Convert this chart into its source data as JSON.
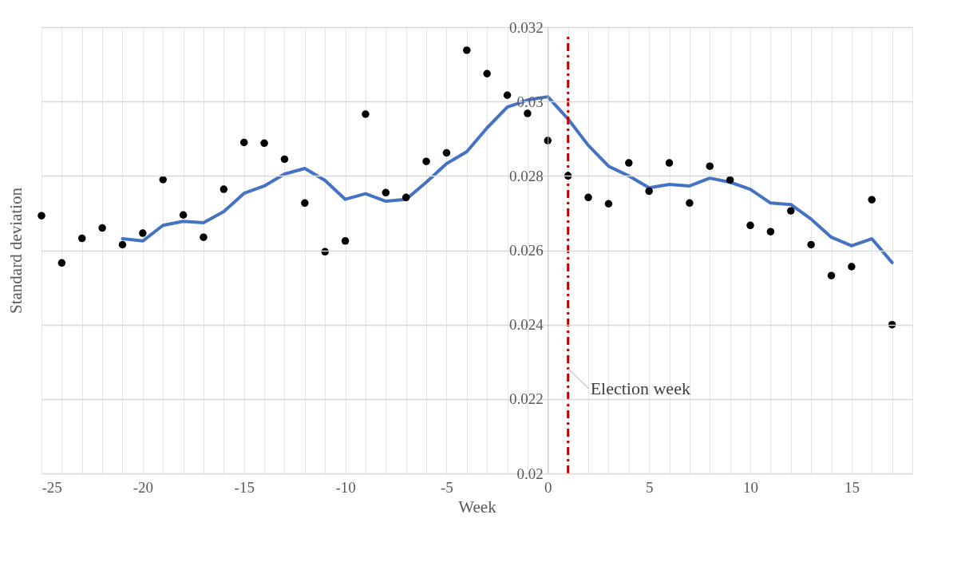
{
  "chart_data": {
    "type": "scatter",
    "xlabel": "Week",
    "ylabel": "Standard deviation",
    "xlim": [
      -25,
      18
    ],
    "xticks": [
      -25,
      -20,
      -15,
      -10,
      -5,
      0,
      5,
      10,
      15
    ],
    "ylim": [
      0.02,
      0.032
    ],
    "yticks": [
      0.02,
      0.022,
      0.024,
      0.026,
      0.028,
      0.03,
      0.032
    ],
    "grid": true,
    "series": [
      {
        "color": "#000000",
        "marker": "circle",
        "x": [
          -25,
          -24,
          -23,
          -22,
          -21,
          -20,
          -19,
          -18,
          -17,
          -16,
          -15,
          -14,
          -13,
          -12,
          -11,
          -10,
          -9,
          -8,
          -7,
          -6,
          -5,
          -4,
          -3,
          -2,
          -1,
          0,
          1,
          2,
          3,
          4,
          5,
          6,
          7,
          8,
          9,
          10,
          11,
          12,
          13,
          14,
          15,
          16,
          17
        ],
        "values": [
          0.02693,
          0.02566,
          0.02632,
          0.0266,
          0.02615,
          0.02646,
          0.0279,
          0.02695,
          0.02635,
          0.02764,
          0.0289,
          0.02888,
          0.02845,
          0.02727,
          0.02596,
          0.02625,
          0.02966,
          0.02755,
          0.02742,
          0.02839,
          0.02862,
          0.03138,
          0.03075,
          0.03017,
          0.02968,
          0.02895,
          0.028,
          0.02742,
          0.02725,
          0.02835,
          0.02759,
          0.02835,
          0.02727,
          0.02826,
          0.02789,
          0.02667,
          0.0265,
          0.02706,
          0.02615,
          0.02532,
          0.02556,
          0.02736,
          0.024
        ]
      },
      {
        "type": "line",
        "color": "#4472c4",
        "marker": "none",
        "line_style": "solid",
        "x": [
          -21,
          -20,
          -19,
          -18,
          -17,
          -16,
          -15,
          -14,
          -13,
          -12,
          -11,
          -10,
          -9,
          -8,
          -7,
          -6,
          -5,
          -4,
          -3,
          -2,
          -1,
          0,
          1,
          2,
          3,
          4,
          5,
          6,
          7,
          8,
          9,
          10,
          11,
          12,
          13,
          14,
          15,
          16,
          17
        ],
        "values": [
          0.02631,
          0.02625,
          0.02667,
          0.02678,
          0.02674,
          0.02704,
          0.02753,
          0.02773,
          0.02805,
          0.0282,
          0.02788,
          0.02737,
          0.02752,
          0.02732,
          0.02737,
          0.02783,
          0.02833,
          0.02865,
          0.02929,
          0.02985,
          0.03004,
          0.03013,
          0.02953,
          0.02882,
          0.02826,
          0.028,
          0.02768,
          0.02777,
          0.02773,
          0.02794,
          0.02783,
          0.02764,
          0.02727,
          0.02723,
          0.02684,
          0.02635,
          0.02612,
          0.02631,
          0.02567
        ]
      }
    ],
    "ref_lines": [
      {
        "axis": "x",
        "value": 1,
        "label": "Election week",
        "color": "#c00000",
        "line_style": "dashdot"
      }
    ]
  }
}
